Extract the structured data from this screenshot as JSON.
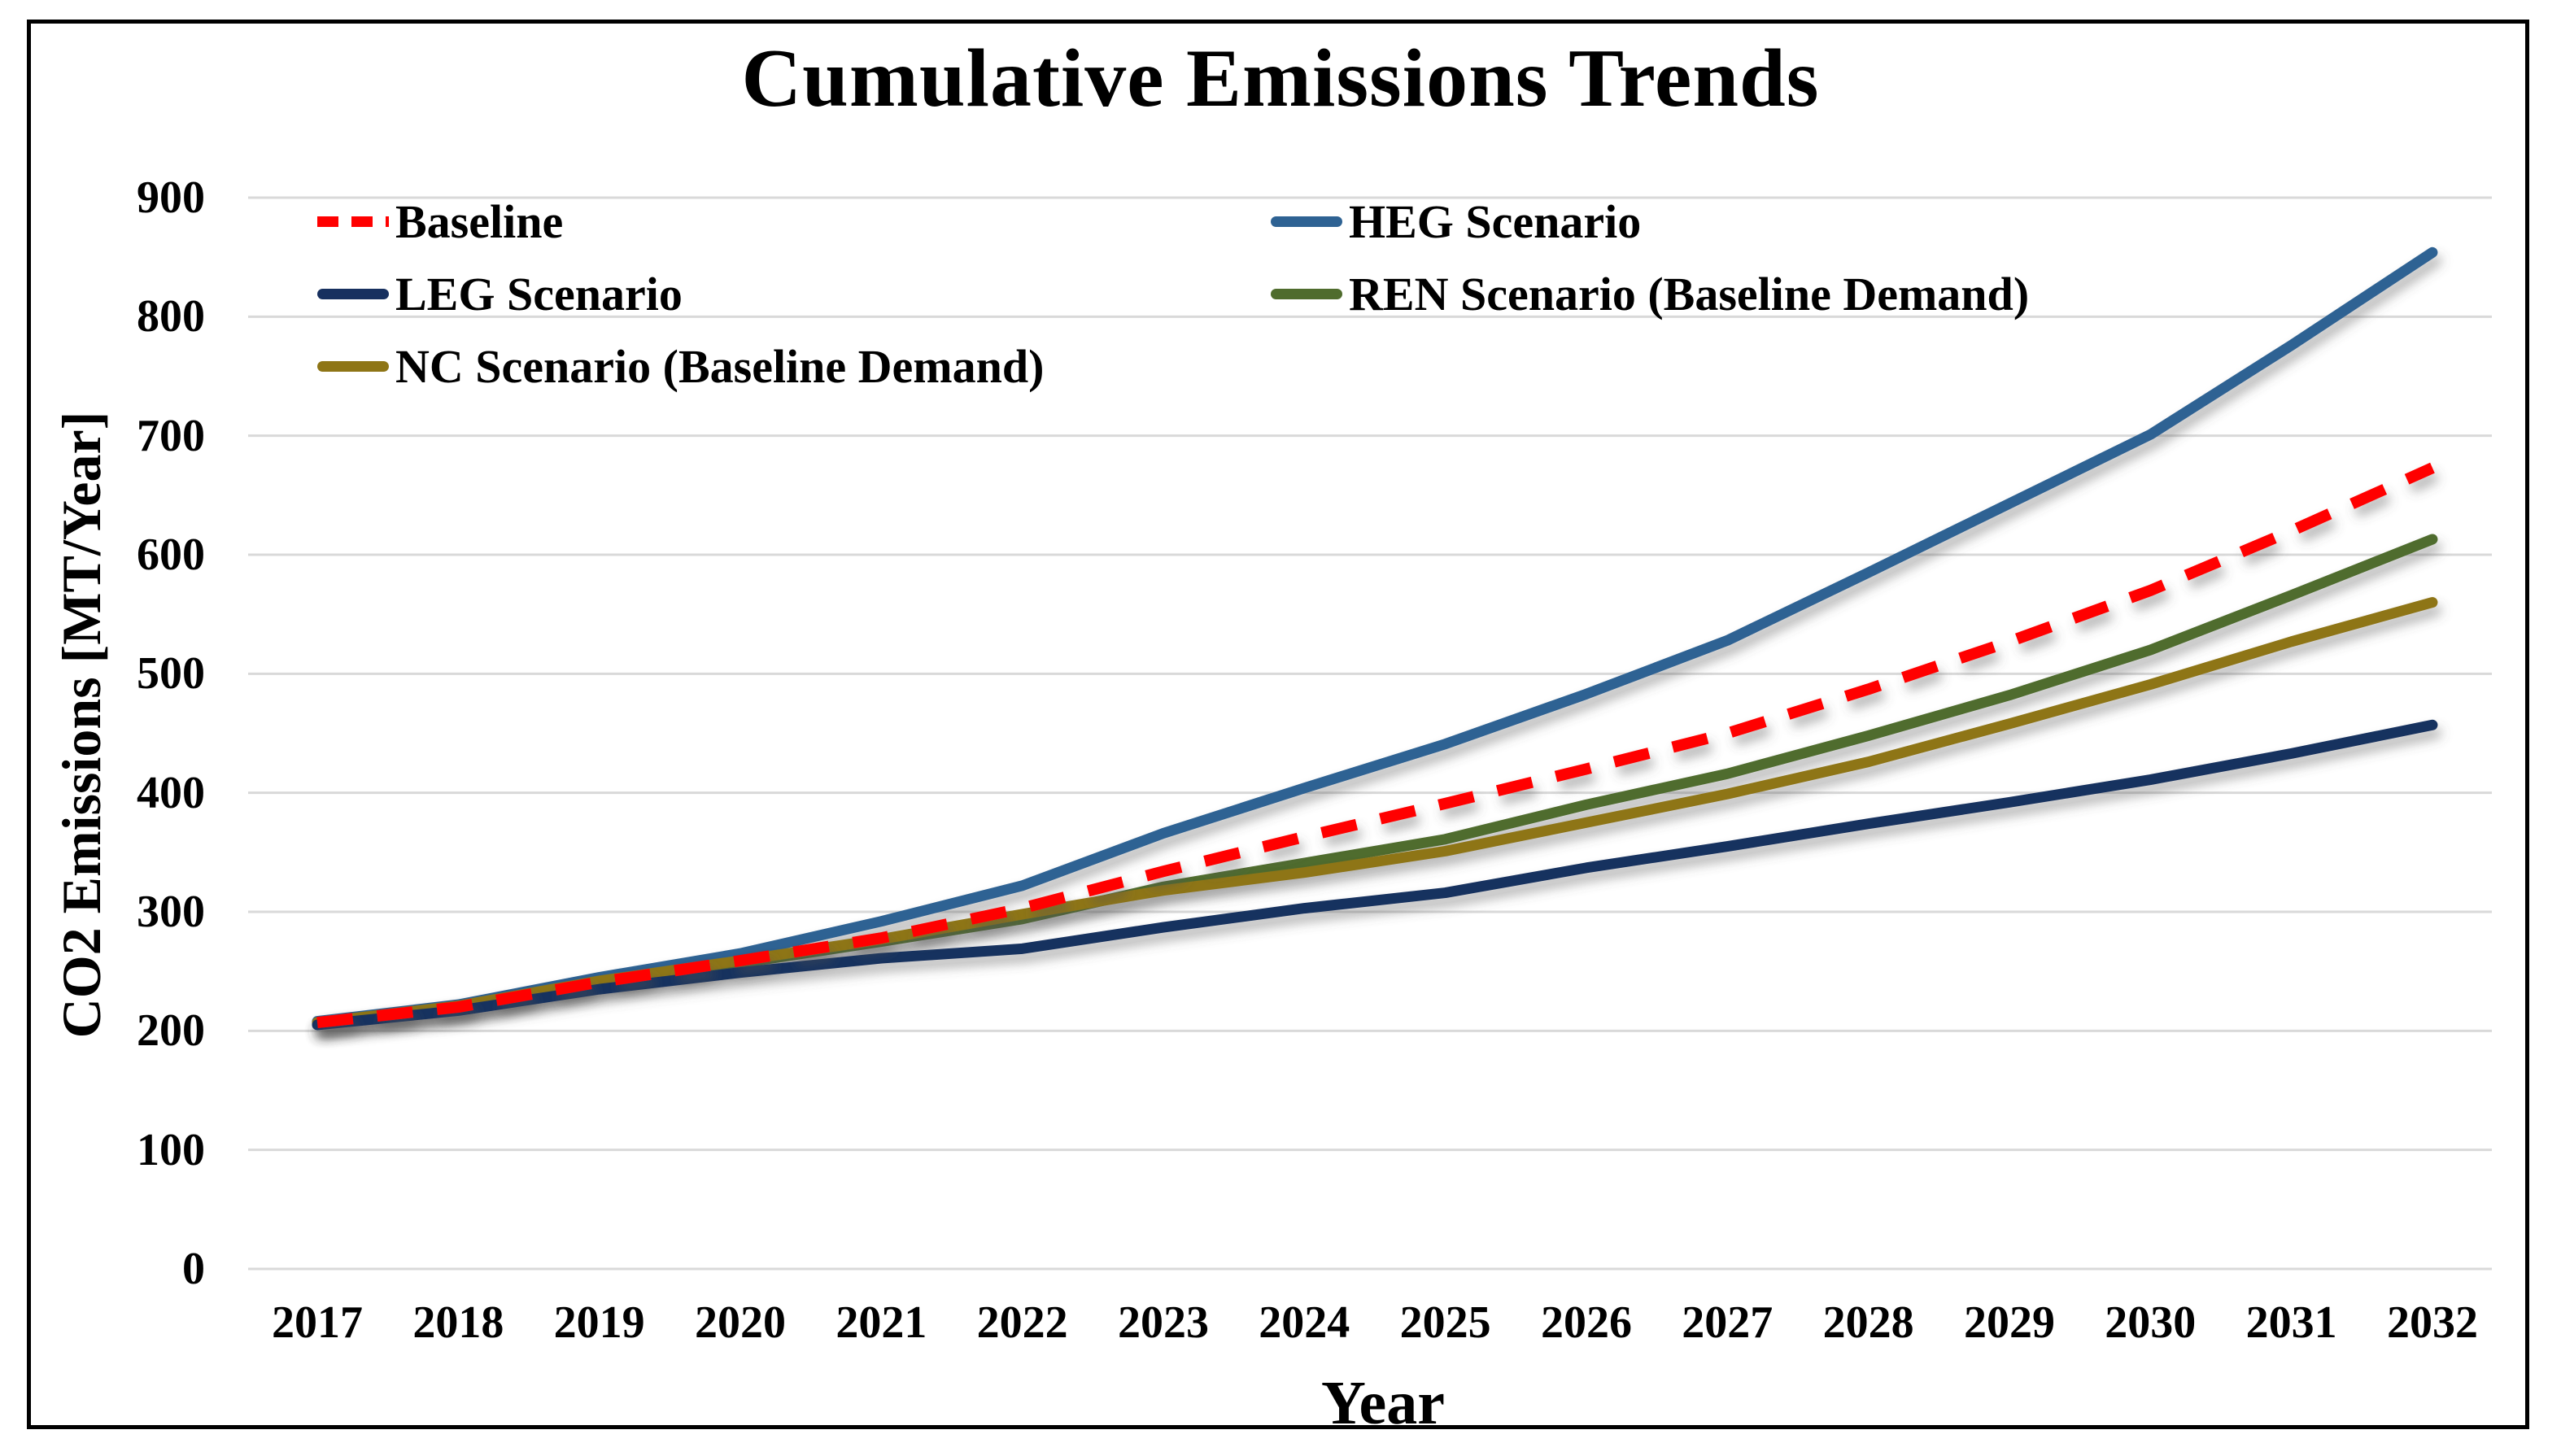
{
  "title": "Cumulative Emissions Trends",
  "axes": {
    "x_label": "Year",
    "y_label": "CO2 Emissions [MT/Year]"
  },
  "colors": {
    "gridline": "#D9D9D9",
    "frame_border": "#000000",
    "text": "#000000",
    "background": "#FFFFFF"
  },
  "chart_data": {
    "type": "line",
    "title": "Cumulative Emissions Trends",
    "xlabel": "Year",
    "ylabel": "CO2 Emissions [MT/Year]",
    "x": [
      2017,
      2018,
      2019,
      2020,
      2021,
      2022,
      2023,
      2024,
      2025,
      2026,
      2027,
      2028,
      2029,
      2030,
      2031,
      2032
    ],
    "ylim": [
      0,
      900
    ],
    "ytick_step": 100,
    "yticks": [
      0,
      100,
      200,
      300,
      400,
      500,
      600,
      700,
      800,
      900
    ],
    "grid": true,
    "legend_position": "top-left-two-columns",
    "series": [
      {
        "name": "Baseline",
        "color": "#FF0000",
        "dashed": true,
        "values": [
          207,
          220,
          241,
          259,
          278,
          303,
          334,
          363,
          391,
          420,
          450,
          487,
          527,
          570,
          620,
          673
        ]
      },
      {
        "name": "HEG Scenario",
        "color": "#2E6293",
        "dashed": false,
        "values": [
          208,
          222,
          245,
          265,
          292,
          322,
          366,
          404,
          441,
          483,
          528,
          585,
          643,
          701,
          776,
          854
        ]
      },
      {
        "name": "LEG Scenario",
        "color": "#17305F",
        "dashed": false,
        "values": [
          205,
          217,
          235,
          249,
          261,
          269,
          287,
          303,
          316,
          337,
          355,
          374,
          392,
          411,
          433,
          457
        ]
      },
      {
        "name": "REN Scenario (Baseline Demand)",
        "color": "#4F6C2D",
        "dashed": false,
        "values": [
          206,
          219,
          240,
          257,
          275,
          294,
          321,
          341,
          361,
          390,
          416,
          448,
          482,
          520,
          566,
          613
        ]
      },
      {
        "name": "NC Scenario (Baseline Demand)",
        "color": "#8E7516",
        "dashed": false,
        "values": [
          207,
          221,
          242,
          259,
          277,
          298,
          318,
          333,
          351,
          375,
          399,
          426,
          458,
          491,
          527,
          560
        ]
      }
    ],
    "z_order": [
      1,
      3,
      4,
      2,
      0
    ],
    "legend_columns": {
      "col1": [
        0,
        2,
        4
      ],
      "col2": [
        1,
        3
      ]
    }
  }
}
